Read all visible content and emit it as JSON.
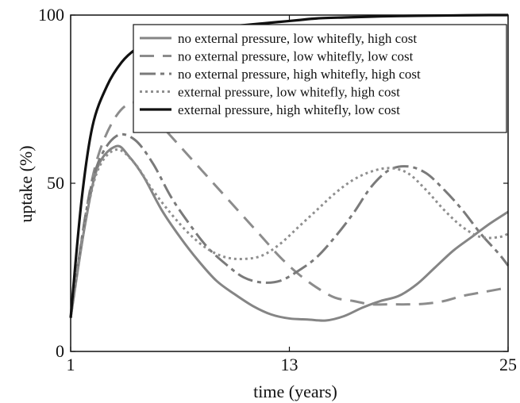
{
  "chart_data": {
    "type": "line",
    "xlabel": "time (years)",
    "ylabel": "uptake (%)",
    "xlim": [
      1,
      25
    ],
    "ylim": [
      0,
      100
    ],
    "xticks": [
      "1",
      "13",
      "25"
    ],
    "yticks": [
      "0",
      "50",
      "100"
    ],
    "grid": false,
    "legend_position": "top-right",
    "series": [
      {
        "name": "no external pressure, low whitefly, high cost",
        "color": "#858585",
        "dash": "solid",
        "x": [
          1,
          1.8,
          2.5,
          3.5,
          4.2,
          5,
          6,
          7,
          8,
          9,
          10,
          11,
          12,
          13,
          14,
          15,
          16,
          17,
          18,
          19,
          20,
          21,
          22,
          23,
          24,
          25
        ],
        "y": [
          10,
          38,
          55,
          61,
          58,
          52,
          42,
          34,
          27,
          21,
          17,
          13.5,
          11,
          9.8,
          9.5,
          9.2,
          10.5,
          13,
          15,
          16.5,
          20,
          25,
          30,
          34,
          38,
          41.5
        ]
      },
      {
        "name": "no external pressure, low whitefly, low cost",
        "color": "#8c8c8c",
        "dash": "18,11",
        "x": [
          1,
          1.8,
          2.5,
          3.5,
          4.5,
          5.5,
          6.5,
          7.5,
          8.5,
          9.5,
          10.5,
          11.5,
          12.5,
          13.5,
          14.5,
          15.5,
          16.5,
          17.5,
          18.5,
          19.5,
          20.5,
          21.5,
          22.5,
          23.5,
          24.5,
          25
        ],
        "y": [
          10,
          40,
          58,
          70,
          74,
          70,
          64,
          58,
          52,
          46,
          40,
          34,
          28,
          23,
          19,
          16,
          15,
          14,
          14,
          14,
          14.2,
          15,
          16.5,
          17.5,
          18.5,
          19
        ]
      },
      {
        "name": "no external pressure, high whitefly, high cost",
        "color": "#7a7a7a",
        "dash": "20,6,5,6",
        "x": [
          1,
          1.8,
          2.5,
          3.5,
          4.5,
          5.5,
          6.5,
          7.5,
          8.5,
          9.5,
          10.5,
          11.5,
          12.5,
          13.5,
          14.5,
          15.5,
          16.5,
          17.5,
          18.5,
          19.5,
          20.5,
          21.5,
          22.5,
          23.5,
          24.5,
          25
        ],
        "y": [
          10,
          40,
          56,
          64,
          63,
          56,
          46,
          38,
          31,
          26,
          22,
          20.5,
          21,
          24,
          28,
          34,
          41,
          49,
          54,
          55,
          53,
          48,
          42,
          35,
          29,
          25.5
        ]
      },
      {
        "name": "external pressure, low whitefly, high cost",
        "color": "#8f8f8f",
        "dash": "3,4",
        "x": [
          1,
          1.8,
          2.5,
          3.5,
          4.5,
          5.5,
          6.5,
          7.5,
          8.5,
          9.5,
          10.5,
          11.5,
          12.5,
          13.5,
          14.5,
          15.5,
          16.5,
          17.5,
          18.5,
          19.5,
          20.5,
          21.5,
          22.5,
          23.5,
          24.5,
          25
        ],
        "y": [
          10,
          38,
          54,
          60,
          56,
          48,
          41,
          35,
          30.5,
          28,
          27.5,
          28.5,
          32,
          37,
          42,
          47,
          51,
          53.5,
          54.5,
          53,
          48,
          42,
          37,
          34,
          34,
          35
        ]
      },
      {
        "name": "external pressure, high whitefly, low cost",
        "color": "#111111",
        "dash": "solid",
        "x": [
          1,
          1.6,
          2.2,
          3,
          3.8,
          4.6,
          5.5,
          6.5,
          7.5,
          8.5,
          9.5,
          10.5,
          11.5,
          12.5,
          13.5,
          14.5,
          16,
          18,
          20,
          22,
          24,
          25
        ],
        "y": [
          10,
          45,
          67,
          79,
          86,
          90,
          92.5,
          94,
          95,
          96,
          96.5,
          97,
          97.5,
          98,
          98.5,
          99,
          99.3,
          99.6,
          99.8,
          99.9,
          100,
          100
        ]
      }
    ]
  }
}
